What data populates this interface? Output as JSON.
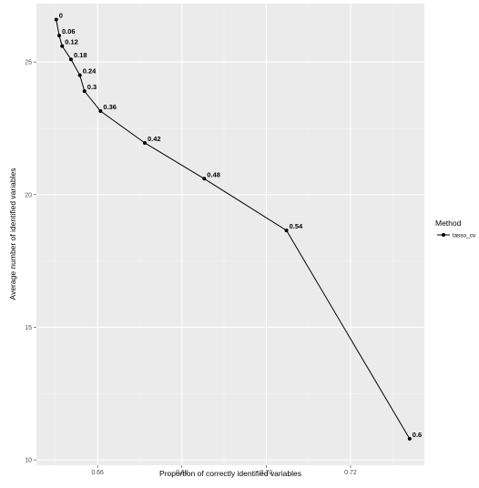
{
  "chart_data": {
    "type": "line",
    "title": "",
    "xlabel": "Proportion of correctly identified variables",
    "ylabel": "Average number of identified variables",
    "xlim": [
      0.6455,
      0.7375
    ],
    "ylim": [
      9.8,
      27.2
    ],
    "x_ticks": [
      0.66,
      0.68,
      0.7,
      0.72
    ],
    "x_tick_labels": [
      "0.66",
      "0.68",
      "0.70",
      "0.72"
    ],
    "y_ticks": [
      10,
      15,
      20,
      25
    ],
    "y_tick_labels": [
      "10",
      "15",
      "20",
      "25"
    ],
    "grid": true,
    "legend": {
      "title": "Method",
      "position": "right",
      "entries": [
        "lasso_cv"
      ]
    },
    "series": [
      {
        "name": "lasso_cv",
        "points": [
          {
            "x": 0.6502,
            "y": 26.6,
            "label": "0"
          },
          {
            "x": 0.6509,
            "y": 26.0,
            "label": "0.06"
          },
          {
            "x": 0.6516,
            "y": 25.6,
            "label": "0.12"
          },
          {
            "x": 0.6537,
            "y": 25.1,
            "label": "0.18"
          },
          {
            "x": 0.6558,
            "y": 24.5,
            "label": "0.24"
          },
          {
            "x": 0.6569,
            "y": 23.9,
            "label": "0.3"
          },
          {
            "x": 0.6607,
            "y": 23.15,
            "label": "0.36"
          },
          {
            "x": 0.6712,
            "y": 21.95,
            "label": "0.42"
          },
          {
            "x": 0.6853,
            "y": 20.6,
            "label": "0.48"
          },
          {
            "x": 0.7048,
            "y": 18.65,
            "label": "0.54"
          },
          {
            "x": 0.734,
            "y": 10.8,
            "label": "0.6"
          }
        ]
      }
    ]
  }
}
